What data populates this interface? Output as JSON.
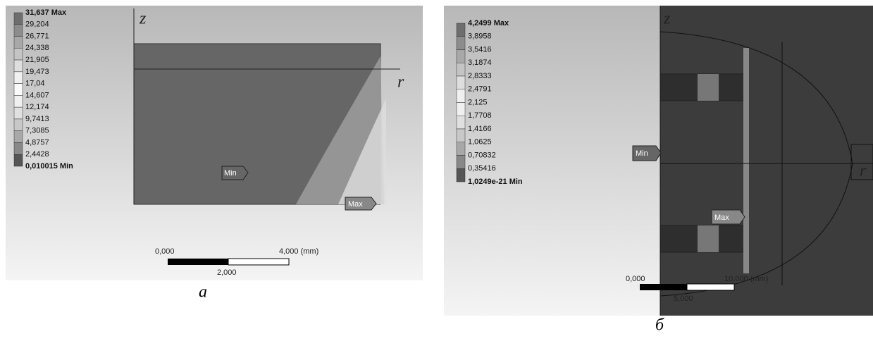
{
  "panels": [
    {
      "legend": [
        "31,637 Max",
        "29,204",
        "26,771",
        "24,338",
        "21,905",
        "19,473",
        "17,04",
        "14,607",
        "12,174",
        "9,7413",
        "7,3085",
        "4,8757",
        "2,4428",
        "0,010015 Min"
      ],
      "axis_z": "z",
      "axis_r": "r",
      "min_label": "Min",
      "max_label": "Max",
      "scale": {
        "start": "0,000",
        "end": "4,000 (mm)",
        "mid": "2,000"
      },
      "caption": "a"
    },
    {
      "legend": [
        "4,2499 Max",
        "3,8958",
        "3,5416",
        "3,1874",
        "2,8333",
        "2,4791",
        "2,125",
        "1,7708",
        "1,4166",
        "1,0625",
        "0,70832",
        "0,35416",
        "1,0249e-21 Min"
      ],
      "axis_z": "z",
      "axis_r": "r",
      "min_label": "Min",
      "max_label": "Max",
      "scale": {
        "start": "0,000",
        "end": "10,000 (mm)",
        "mid": "5,000"
      },
      "caption": "б"
    }
  ]
}
